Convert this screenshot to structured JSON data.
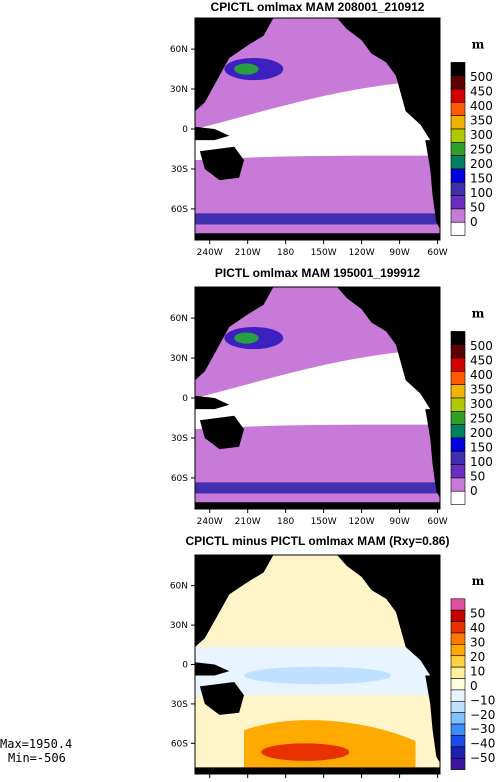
{
  "chart_data": [
    {
      "type": "heatmap",
      "title": "CPICTL omlmax MAM 208001_210912",
      "xticks": [
        "240W",
        "210W",
        "180",
        "150W",
        "120W",
        "90W",
        "60W"
      ],
      "yticks": [
        "60N",
        "30N",
        "0",
        "30S",
        "60S"
      ],
      "units": "m",
      "colorbar_labels": [
        "500",
        "450",
        "400",
        "350",
        "300",
        "250",
        "200",
        "150",
        "100",
        "50",
        "0"
      ],
      "colors": [
        "#000000",
        "#5c0000",
        "#d20000",
        "#ff5a00",
        "#f0b400",
        "#b4c800",
        "#32a028",
        "#008060",
        "#0000e0",
        "#4030b0",
        "#6a2ec0",
        "#c87ad8",
        "#ffffff"
      ],
      "description_regions": "mostly lavender (50-100 m) ocean, white equatorial band, deeper blue/green in NW Pacific and Southern Ocean"
    },
    {
      "type": "heatmap",
      "title": "PICTL omlmax MAM 195001_199912",
      "xticks": [
        "240W",
        "210W",
        "180",
        "150W",
        "120W",
        "90W",
        "60W"
      ],
      "yticks": [
        "60N",
        "30N",
        "0",
        "30S",
        "60S"
      ],
      "units": "m",
      "colorbar_labels": [
        "500",
        "450",
        "400",
        "350",
        "300",
        "250",
        "200",
        "150",
        "100",
        "50",
        "0"
      ],
      "colors": [
        "#000000",
        "#5c0000",
        "#d20000",
        "#ff5a00",
        "#f0b400",
        "#b4c800",
        "#32a028",
        "#008060",
        "#0000e0",
        "#4030b0",
        "#6a2ec0",
        "#c87ad8",
        "#ffffff"
      ]
    },
    {
      "type": "heatmap",
      "title": "CPICTL minus PICTL omlmax MAM (Rxy=0.86)",
      "xticks": [
        "240W",
        "210W",
        "180",
        "150W",
        "120W",
        "90W",
        "60W"
      ],
      "yticks": [
        "60N",
        "30N",
        "0",
        "30S",
        "60S"
      ],
      "units": "m",
      "colorbar_labels": [
        "50",
        "40",
        "30",
        "20",
        "10",
        "0",
        "−10",
        "−20",
        "−30",
        "−40",
        "−50"
      ],
      "colors": [
        "#e0509c",
        "#c80000",
        "#e83000",
        "#ff7800",
        "#ffaa00",
        "#ffd040",
        "#fff0a0",
        "#ffffe0",
        "#e8f4ff",
        "#c0e0ff",
        "#80c0ff",
        "#3c8cff",
        "#1c4ce8",
        "#2020b0",
        "#3c14a0"
      ],
      "stats": {
        "max": "Max=1950.4",
        "min": "Min=-506"
      }
    }
  ]
}
